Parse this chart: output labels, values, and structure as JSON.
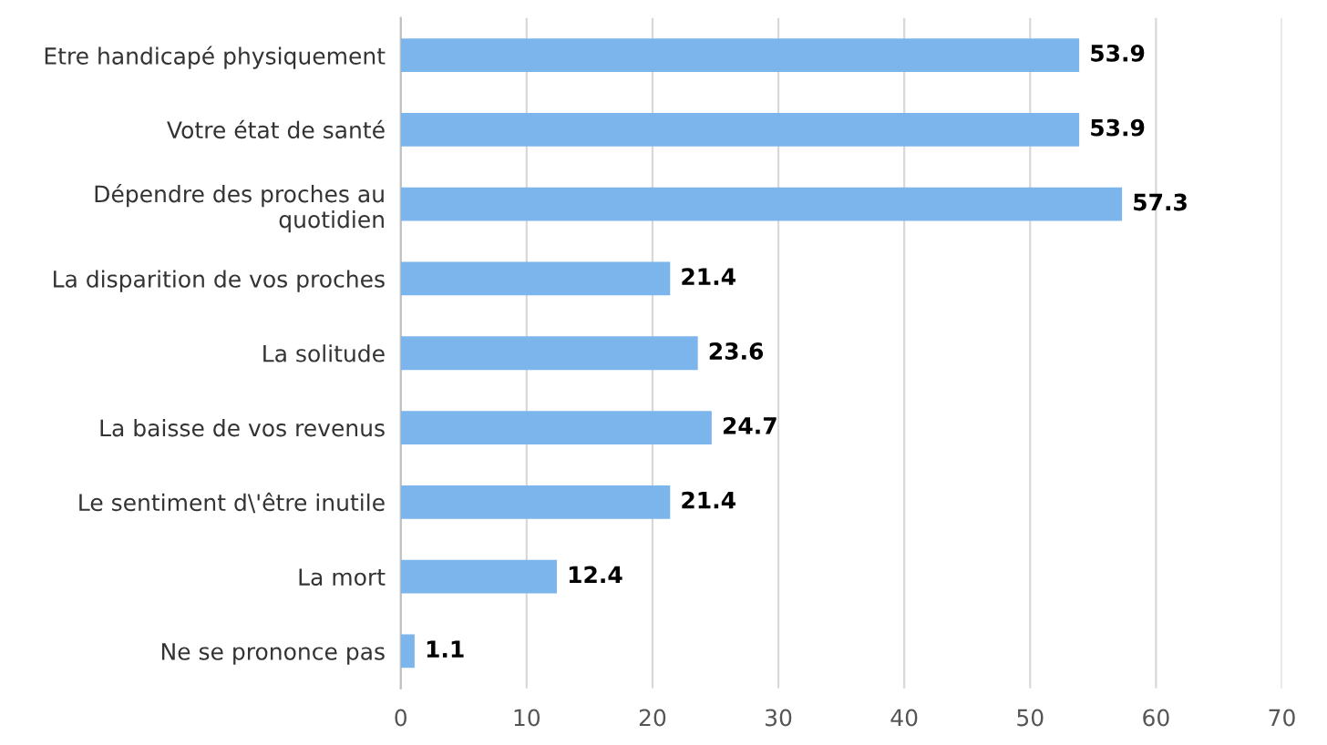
{
  "chart_data": {
    "type": "bar",
    "orientation": "horizontal",
    "categories": [
      "Etre handicapé physiquement",
      "Votre état de santé",
      "Dépendre des proches au\nquotidien",
      "La disparition de vos proches",
      "La solitude",
      "La baisse de vos revenus",
      "Le sentiment d\\'être inutile",
      "La mort",
      "Ne se prononce pas"
    ],
    "values": [
      53.9,
      53.9,
      57.3,
      21.4,
      23.6,
      24.7,
      21.4,
      12.4,
      1.1
    ],
    "color": "#7cb5ec",
    "xlim": [
      0,
      70
    ],
    "xticks": [
      0,
      10,
      20,
      30,
      40,
      50,
      60,
      70
    ],
    "grid": "x",
    "data_labels": true
  }
}
